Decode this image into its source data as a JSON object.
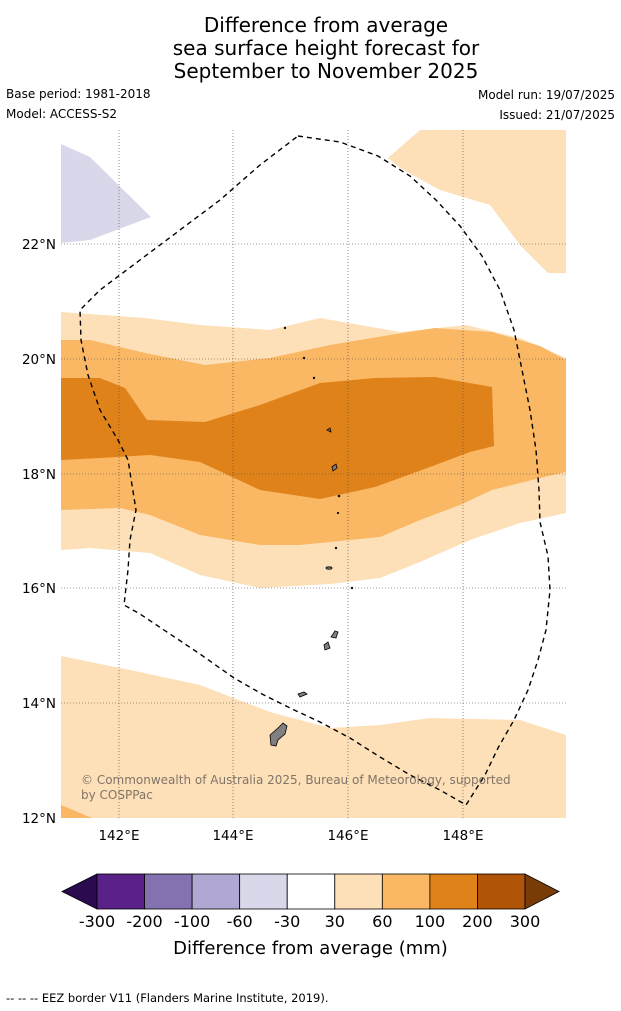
{
  "title": {
    "line1": "Difference from average",
    "line2": "sea surface height forecast for",
    "line3": "September to November 2025"
  },
  "meta": {
    "base_period": "Base period: 1981-2018",
    "model": "Model: ACCESS-S2",
    "model_run": "Model run: 19/07/2025",
    "issued": "Issued: 21/07/2025"
  },
  "map": {
    "lat_ticks": [
      "22°N",
      "20°N",
      "18°N",
      "16°N",
      "14°N",
      "12°N"
    ],
    "lon_ticks": [
      "142°E",
      "144°E",
      "146°E",
      "148°E"
    ],
    "copyright_line1": "© Commonwealth of Australia 2025, Bureau of Meteorology, supported",
    "copyright_line2": "by COSPPac",
    "colors": {
      "-60 to -30": "#d8d8ea",
      "30 to 60": "#fde0b8",
      "60 to 100": "#fab764",
      "100 to 200": "#e0821a",
      "land": "#808080"
    }
  },
  "colorbar": {
    "ticks": [
      "-300",
      "-200",
      "-100",
      "-60",
      "-30",
      "30",
      "60",
      "100",
      "200",
      "300"
    ],
    "colors": [
      "#2c0a4f",
      "#5a2288",
      "#8472b0",
      "#b0a8d2",
      "#d8d8ea",
      "#ffffff",
      "#fde0b8",
      "#fab764",
      "#e0821a",
      "#b05408",
      "#7a3c06"
    ],
    "label": "Difference from average (mm)"
  },
  "footer": {
    "legend_text": "--  --  -- EEZ border V11 (Flanders Marine Institute, 2019)."
  }
}
